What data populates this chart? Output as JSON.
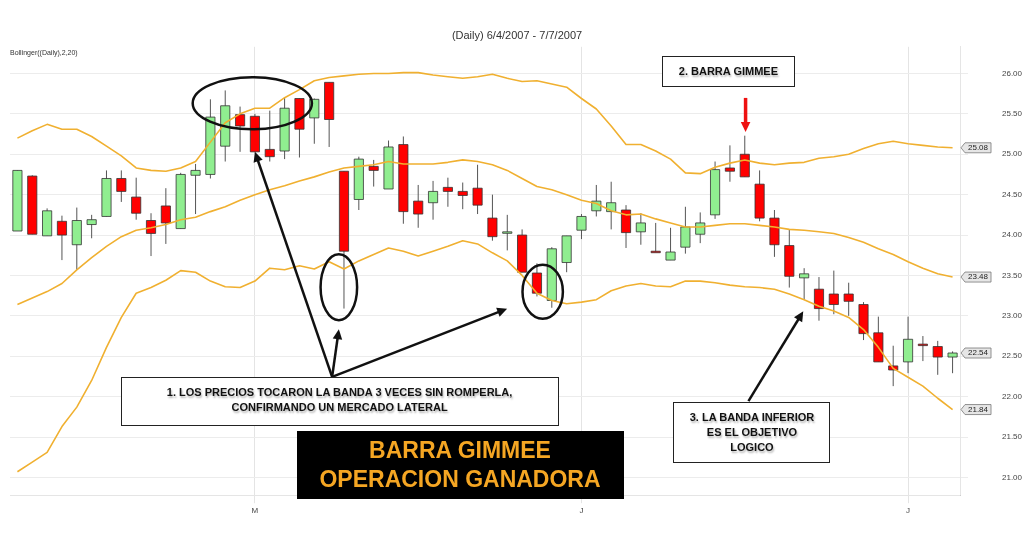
{
  "chart_data": {
    "type": "candlestick",
    "title": "(Daily) 6/4/2007 - 7/7/2007",
    "categories": [
      null,
      null,
      null,
      null,
      null,
      null,
      null,
      null,
      null,
      null,
      null,
      null,
      null,
      null,
      null,
      null,
      "M",
      null,
      null,
      null,
      null,
      null,
      null,
      null,
      null,
      null,
      null,
      null,
      null,
      null,
      null,
      null,
      null,
      null,
      null,
      null,
      null,
      null,
      "J",
      null,
      null,
      null,
      null,
      null,
      null,
      null,
      null,
      null,
      null,
      null,
      null,
      null,
      null,
      null,
      null,
      null,
      null,
      null,
      null,
      null,
      "J",
      null,
      null,
      null
    ],
    "ohlc": [
      [
        24.05,
        24.8,
        24.05,
        24.8
      ],
      [
        24.73,
        24.74,
        24.01,
        24.01
      ],
      [
        23.99,
        24.33,
        23.99,
        24.3
      ],
      [
        24.17,
        24.24,
        23.69,
        24.0
      ],
      [
        23.88,
        24.34,
        23.57,
        24.18
      ],
      [
        24.13,
        24.25,
        23.96,
        24.19
      ],
      [
        24.23,
        24.8,
        24.23,
        24.7
      ],
      [
        24.7,
        24.8,
        24.41,
        24.54
      ],
      [
        24.47,
        24.71,
        24.19,
        24.27
      ],
      [
        24.18,
        24.27,
        23.74,
        24.02
      ],
      [
        24.36,
        24.58,
        23.89,
        24.15
      ],
      [
        24.08,
        24.77,
        24.08,
        24.75
      ],
      [
        24.74,
        24.88,
        24.26,
        24.8
      ],
      [
        24.75,
        25.68,
        24.7,
        25.46
      ],
      [
        25.1,
        25.79,
        24.91,
        25.6
      ],
      [
        25.49,
        25.59,
        25.03,
        25.35
      ],
      [
        25.47,
        25.5,
        25.03,
        25.03
      ],
      [
        25.06,
        25.54,
        24.91,
        24.97
      ],
      [
        25.04,
        25.7,
        24.94,
        25.57
      ],
      [
        25.69,
        25.69,
        24.96,
        25.31
      ],
      [
        25.45,
        25.69,
        25.13,
        25.68
      ],
      [
        25.89,
        25.89,
        25.09,
        25.43
      ],
      [
        24.79,
        24.79,
        23.09,
        23.8
      ],
      [
        24.44,
        24.97,
        24.31,
        24.94
      ],
      [
        24.85,
        24.93,
        24.6,
        24.8
      ],
      [
        24.57,
        25.17,
        24.57,
        25.09
      ],
      [
        25.12,
        25.22,
        24.14,
        24.29
      ],
      [
        24.42,
        24.62,
        24.09,
        24.26
      ],
      [
        24.4,
        24.67,
        24.19,
        24.54
      ],
      [
        24.59,
        24.71,
        24.35,
        24.54
      ],
      [
        24.54,
        24.65,
        24.32,
        24.49
      ],
      [
        24.58,
        24.87,
        24.26,
        24.37
      ],
      [
        24.21,
        24.5,
        23.93,
        23.98
      ],
      [
        24.04,
        24.25,
        23.81,
        24.04
      ],
      [
        24.0,
        24.07,
        23.54,
        23.54
      ],
      [
        23.53,
        23.65,
        23.24,
        23.28
      ],
      [
        23.19,
        23.85,
        23.1,
        23.83
      ],
      [
        23.66,
        23.99,
        23.54,
        23.99
      ],
      [
        24.06,
        24.26,
        23.95,
        24.23
      ],
      [
        24.3,
        24.62,
        24.23,
        24.42
      ],
      [
        24.29,
        24.66,
        24.07,
        24.4
      ],
      [
        24.31,
        24.37,
        23.84,
        24.03
      ],
      [
        24.04,
        24.27,
        23.88,
        24.15
      ],
      [
        23.8,
        24.15,
        23.79,
        23.79
      ],
      [
        23.69,
        24.09,
        23.69,
        23.79
      ],
      [
        23.85,
        24.35,
        23.77,
        24.1
      ],
      [
        24.01,
        24.28,
        23.9,
        24.15
      ],
      [
        24.25,
        24.91,
        24.2,
        24.81
      ],
      [
        24.83,
        25.11,
        24.66,
        24.79
      ],
      [
        25.0,
        25.23,
        24.72,
        24.72
      ],
      [
        24.63,
        24.8,
        24.17,
        24.21
      ],
      [
        24.21,
        24.31,
        23.73,
        23.88
      ],
      [
        23.87,
        24.07,
        23.35,
        23.49
      ],
      [
        23.47,
        23.59,
        23.2,
        23.52
      ],
      [
        23.33,
        23.48,
        22.94,
        23.09
      ],
      [
        23.27,
        23.56,
        23.02,
        23.14
      ],
      [
        23.27,
        23.41,
        23.0,
        23.18
      ],
      [
        23.14,
        23.17,
        22.7,
        22.78
      ],
      [
        22.79,
        22.99,
        22.43,
        22.43
      ],
      [
        22.38,
        22.63,
        22.13,
        22.33
      ],
      [
        22.43,
        22.99,
        22.29,
        22.71
      ],
      [
        22.65,
        22.75,
        22.44,
        22.64
      ],
      [
        22.62,
        22.69,
        22.27,
        22.49
      ],
      [
        22.49,
        22.56,
        22.29,
        22.54
      ]
    ],
    "colors": [
      "#90ee90",
      "#ff0000",
      "#90ee90",
      "#ff0000",
      "#90ee90",
      "#90ee90",
      "#90ee90",
      "#ff0000",
      "#ff0000",
      "#ff0000",
      "#ff0000",
      "#90ee90",
      "#90ee90",
      "#90ee90",
      "#90ee90",
      "#ff0000",
      "#ff0000",
      "#ff0000",
      "#90ee90",
      "#ff0000",
      "#90ee90",
      "#ff0000",
      "#ff0000",
      "#90ee90",
      "#ff0000",
      "#90ee90",
      "#ff0000",
      "#ff0000",
      "#90ee90",
      "#ff0000",
      "#ff0000",
      "#ff0000",
      "#ff0000",
      "#90ee90",
      "#ff0000",
      "#ff0000",
      "#90ee90",
      "#90ee90",
      "#90ee90",
      "#90ee90",
      "#90ee90",
      "#ff0000",
      "#90ee90",
      "#ff0000",
      "#90ee90",
      "#90ee90",
      "#90ee90",
      "#90ee90",
      "#ff0000",
      "#ff0000",
      "#ff0000",
      "#ff0000",
      "#ff0000",
      "#90ee90",
      "#ff0000",
      "#ff0000",
      "#ff0000",
      "#ff0000",
      "#ff0000",
      "#ff0000",
      "#90ee90",
      "#ff0000",
      "#ff0000",
      "#90ee90"
    ],
    "series": [
      {
        "type": "line",
        "color": "#f0b030",
        "values": [
          25.2,
          25.29,
          25.37,
          25.31,
          25.31,
          25.22,
          25.1,
          24.98,
          24.83,
          24.8,
          24.79,
          24.83,
          24.91,
          25.15,
          25.39,
          25.5,
          25.57,
          25.57,
          25.7,
          25.8,
          25.91,
          25.95,
          25.97,
          25.99,
          26.0,
          26.0,
          26.01,
          26.01,
          25.98,
          25.96,
          25.94,
          25.96,
          25.99,
          25.94,
          25.9,
          25.91,
          25.87,
          25.83,
          25.69,
          25.56,
          25.35,
          25.12,
          25.12,
          25.04,
          24.94,
          24.77,
          24.76,
          24.84,
          24.89,
          24.93,
          24.89,
          24.87,
          24.89,
          24.9,
          24.95,
          24.97,
          25.0,
          25.07,
          25.13,
          25.16,
          25.13,
          25.11,
          25.09,
          25.08
        ],
        "value_labels": [
          null,
          null,
          null,
          null,
          null,
          null,
          null,
          null,
          null,
          null,
          null,
          null,
          null,
          null,
          null,
          null,
          null,
          null,
          null,
          null,
          null,
          null,
          null,
          null,
          null,
          null,
          null,
          null,
          null,
          null,
          null,
          null,
          null,
          null,
          null,
          null,
          null,
          null,
          null,
          null,
          null,
          null,
          null,
          null,
          null,
          null,
          null,
          null,
          null,
          null,
          null,
          null,
          null,
          null,
          null,
          null,
          null,
          null,
          null,
          null,
          null,
          null,
          null,
          "25.08"
        ]
      },
      {
        "type": "line",
        "color": "#f0b030",
        "values": [
          23.14,
          23.22,
          23.3,
          23.4,
          23.57,
          23.72,
          23.86,
          23.98,
          24.06,
          24.09,
          24.13,
          24.19,
          24.22,
          24.29,
          24.35,
          24.43,
          24.5,
          24.56,
          24.61,
          24.67,
          24.72,
          24.78,
          24.83,
          24.85,
          24.87,
          24.91,
          24.88,
          24.88,
          24.88,
          24.9,
          24.93,
          24.91,
          24.87,
          24.8,
          24.7,
          24.6,
          24.56,
          24.5,
          24.43,
          24.39,
          24.3,
          24.25,
          24.26,
          24.2,
          24.15,
          24.1,
          24.1,
          24.12,
          24.14,
          24.14,
          24.12,
          24.1,
          24.07,
          24.06,
          24.04,
          24.02,
          23.97,
          23.91,
          23.83,
          23.76,
          23.67,
          23.59,
          23.52,
          23.48
        ],
        "value_labels": [
          null,
          null,
          null,
          null,
          null,
          null,
          null,
          null,
          null,
          null,
          null,
          null,
          null,
          null,
          null,
          null,
          null,
          null,
          null,
          null,
          null,
          null,
          null,
          null,
          null,
          null,
          null,
          null,
          null,
          null,
          null,
          null,
          null,
          null,
          null,
          null,
          null,
          null,
          null,
          null,
          null,
          null,
          null,
          null,
          null,
          null,
          null,
          null,
          null,
          null,
          null,
          null,
          null,
          null,
          null,
          null,
          null,
          null,
          null,
          null,
          null,
          null,
          null,
          "23.48"
        ]
      },
      {
        "type": "line",
        "color": "#f0b030",
        "values": [
          21.07,
          21.19,
          21.31,
          21.63,
          21.87,
          22.2,
          22.61,
          22.98,
          23.28,
          23.35,
          23.44,
          23.56,
          23.54,
          23.43,
          23.36,
          23.35,
          23.43,
          23.59,
          23.57,
          23.62,
          23.58,
          23.67,
          23.58,
          23.68,
          23.76,
          23.84,
          23.8,
          23.74,
          23.8,
          23.86,
          23.93,
          23.89,
          23.78,
          23.68,
          23.5,
          23.28,
          23.19,
          23.15,
          23.17,
          23.2,
          23.31,
          23.37,
          23.4,
          23.37,
          23.36,
          23.43,
          23.43,
          23.41,
          23.38,
          23.36,
          23.35,
          23.33,
          23.27,
          23.2,
          23.12,
          23.06,
          22.98,
          22.83,
          22.61,
          22.35,
          22.24,
          22.13,
          21.98,
          21.84
        ],
        "value_labels": [
          null,
          null,
          null,
          null,
          null,
          null,
          null,
          null,
          null,
          null,
          null,
          null,
          null,
          null,
          null,
          null,
          null,
          null,
          null,
          null,
          null,
          null,
          null,
          null,
          null,
          null,
          null,
          null,
          null,
          null,
          null,
          null,
          null,
          null,
          null,
          null,
          null,
          null,
          null,
          null,
          null,
          null,
          null,
          null,
          null,
          null,
          null,
          null,
          null,
          null,
          null,
          null,
          null,
          null,
          null,
          null,
          null,
          null,
          null,
          null,
          null,
          null,
          null,
          "21.84"
        ]
      }
    ],
    "ylim": [
      20.78,
      26.33
    ],
    "yticks": [
      {
        "value": 21,
        "label": "21.00"
      },
      {
        "value": 21.5,
        "label": "21.50"
      },
      {
        "value": 22,
        "label": "22.00"
      },
      {
        "value": 22.5,
        "label": "22.50"
      },
      {
        "value": 23,
        "label": "23.00"
      },
      {
        "value": 23.5,
        "label": "23.50"
      },
      {
        "value": 24,
        "label": "24.00"
      },
      {
        "value": 24.5,
        "label": "24.50"
      },
      {
        "value": 25,
        "label": "25.00"
      },
      {
        "value": 25.5,
        "label": "25.50"
      },
      {
        "value": 26,
        "label": "26.00"
      }
    ],
    "grid": true,
    "annotations": [
      "Bollinger((Daily),2,20)",
      {
        "text": "1. LOS PRECIOS TOCARON LA BANDA 3 VECES SIN ROMPERLA, CONFIRMANDO UN MERCADO LATERAL",
        "x": "M",
        "y": 25.03
      },
      "2. BARRA GIMMEE",
      "3. LA BANDA INFERIOR ES EL OBJETIVO LOGICO",
      "BARRA GIMMEE OPERACION GANADORA"
    ],
    "value_labels": [
      null,
      null,
      null,
      null,
      null,
      null,
      null,
      null,
      null,
      null,
      null,
      null,
      null,
      null,
      null,
      null,
      null,
      null,
      null,
      null,
      null,
      null,
      null,
      null,
      null,
      null,
      null,
      null,
      null,
      null,
      null,
      null,
      null,
      null,
      null,
      null,
      null,
      null,
      null,
      null,
      null,
      null,
      null,
      null,
      null,
      null,
      null,
      null,
      null,
      null,
      null,
      null,
      null,
      null,
      null,
      null,
      null,
      null,
      null,
      null,
      null,
      null,
      null,
      "22.54"
    ]
  }
}
